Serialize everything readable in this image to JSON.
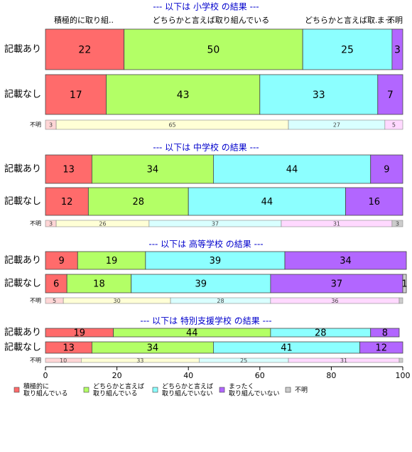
{
  "chart_data": {
    "type": "bar",
    "orientation": "horizontal",
    "stacked": true,
    "xlim": [
      0,
      100
    ],
    "x_ticks": [
      0,
      20,
      40,
      60,
      80,
      100
    ],
    "top_header_labels": [
      "積極的に取り組..",
      "どちらかと言えば取り組んでいる",
      "どちらかと言えば取..",
      "まっ..",
      "不明"
    ],
    "legend_position": "bottom",
    "legend": [
      {
        "label": "積極的に\n取り組んでいる",
        "color": "#ff6b6b"
      },
      {
        "label": "どちらかと言えば\n取り組んでいる",
        "color": "#b3ff66"
      },
      {
        "label": "どちらかと言えば\n取り組んでいない",
        "color": "#8cffff"
      },
      {
        "label": "まったく\n取り組んでいない",
        "color": "#b266ff"
      },
      {
        "label": "不明",
        "color": "#cccccc"
      }
    ],
    "na_colors": [
      "#ffd6d6",
      "#ffffd6",
      "#d9ffff",
      "#ffd9ff",
      "#cccccc"
    ],
    "panels": [
      {
        "title": "--- 以下は 小学校 の結果 ---",
        "rows": [
          {
            "label": "記載あり",
            "values": [
              22,
              50,
              25,
              3
            ],
            "labels": [
              "22",
              "50",
              "25",
              "3"
            ]
          },
          {
            "label": "記載なし",
            "values": [
              17,
              43,
              33,
              7
            ],
            "labels": [
              "17",
              "43",
              "33",
              "7"
            ]
          }
        ],
        "na_row": {
          "label": "不明",
          "values": [
            3,
            65,
            27,
            5,
            0
          ],
          "labels": [
            "3",
            "65",
            "27",
            "5",
            ""
          ]
        }
      },
      {
        "title": "--- 以下は 中学校 の結果 ---",
        "rows": [
          {
            "label": "記載あり",
            "values": [
              13,
              34,
              44,
              9
            ],
            "labels": [
              "13",
              "34",
              "44",
              "9"
            ]
          },
          {
            "label": "記載なし",
            "values": [
              12,
              28,
              44,
              16
            ],
            "labels": [
              "12",
              "28",
              "44",
              "16"
            ]
          }
        ],
        "na_row": {
          "label": "不明",
          "values": [
            3,
            26,
            37,
            31,
            3
          ],
          "labels": [
            "3",
            "26",
            "37",
            "31",
            "3"
          ]
        }
      },
      {
        "title": "--- 以下は 高等学校 の結果 ---",
        "rows": [
          {
            "label": "記載あり",
            "values": [
              9,
              19,
              39,
              34
            ],
            "labels": [
              "9",
              "19",
              "39",
              "34"
            ]
          },
          {
            "label": "記載なし",
            "values": [
              6,
              18,
              39,
              37,
              1
            ],
            "labels": [
              "6",
              "18",
              "39",
              "37",
              "1"
            ]
          }
        ],
        "na_row": {
          "label": "不明",
          "values": [
            5,
            30,
            28,
            36,
            1
          ],
          "labels": [
            "5",
            "30",
            "28",
            "36",
            ""
          ]
        }
      },
      {
        "title": "--- 以下は 特別支援学校 の結果 ---",
        "rows": [
          {
            "label": "記載あり",
            "values": [
              19,
              44,
              28,
              8
            ],
            "labels": [
              "19",
              "44",
              "28",
              "8"
            ]
          },
          {
            "label": "記載なし",
            "values": [
              13,
              34,
              41,
              12
            ],
            "labels": [
              "13",
              "34",
              "41",
              "12"
            ]
          }
        ],
        "na_row": {
          "label": "不明",
          "values": [
            10,
            33,
            25,
            31,
            1
          ],
          "labels": [
            "10",
            "33",
            "25",
            "31",
            ""
          ]
        }
      }
    ]
  }
}
